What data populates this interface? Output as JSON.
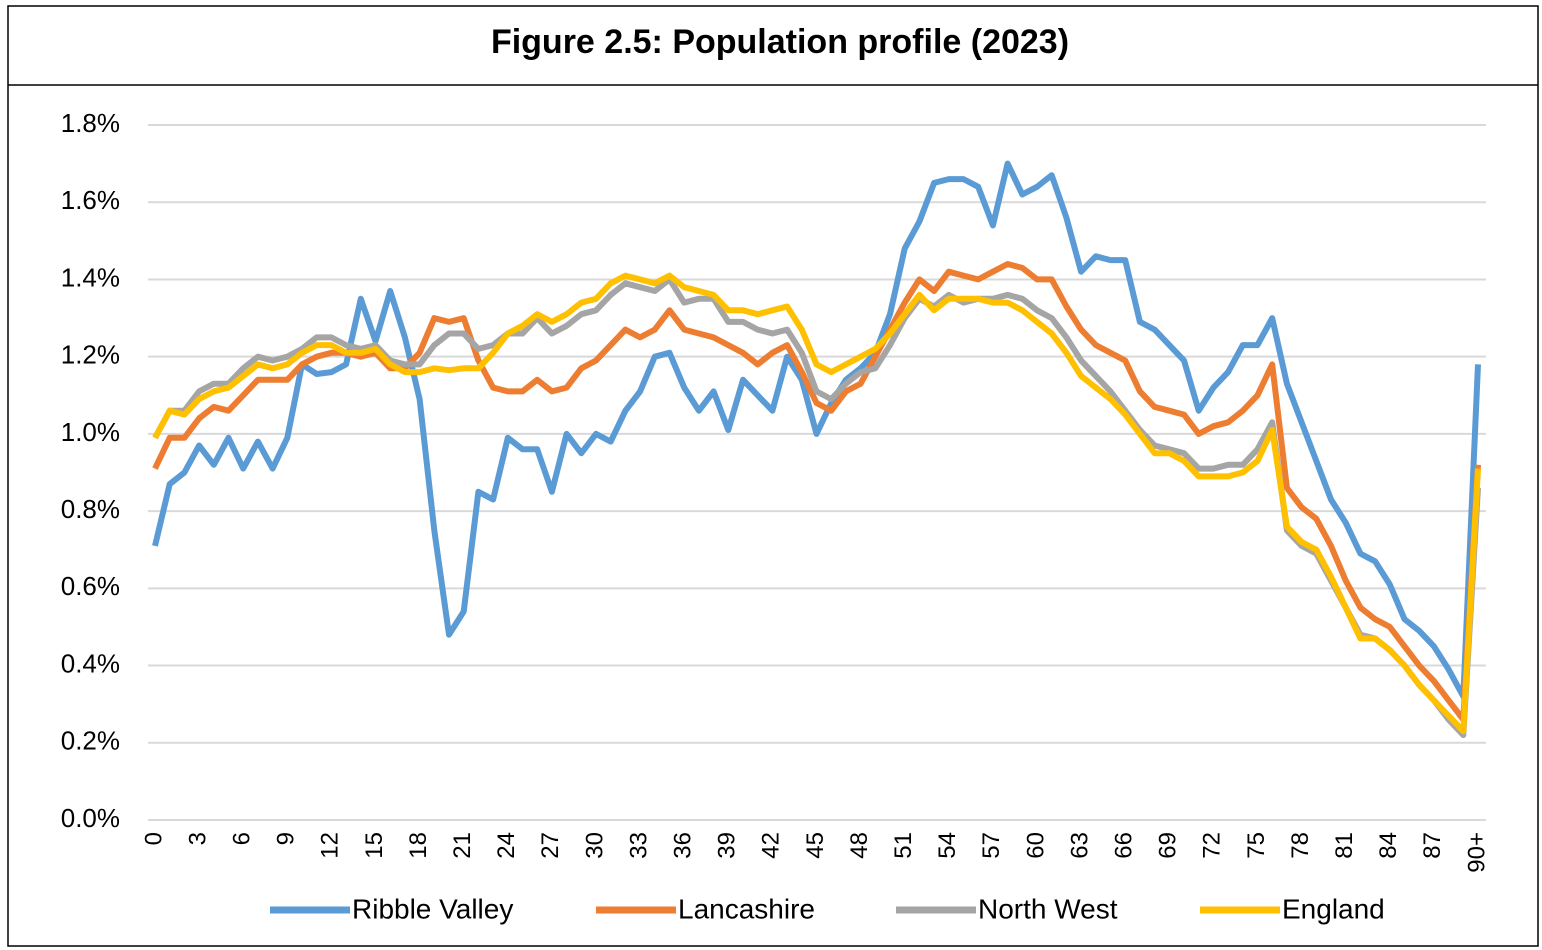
{
  "chart_data": {
    "type": "line",
    "title": "Figure 2.5: Population profile (2023)",
    "categories": [
      "0",
      null,
      null,
      "3",
      null,
      null,
      "6",
      null,
      null,
      "9",
      null,
      null,
      "12",
      null,
      null,
      "15",
      null,
      null,
      "18",
      null,
      null,
      "21",
      null,
      null,
      "24",
      null,
      null,
      "27",
      null,
      null,
      "30",
      null,
      null,
      "33",
      null,
      null,
      "36",
      null,
      null,
      "39",
      null,
      null,
      "42",
      null,
      null,
      "45",
      null,
      null,
      "48",
      null,
      null,
      "51",
      null,
      null,
      "54",
      null,
      null,
      "57",
      null,
      null,
      "60",
      null,
      null,
      "63",
      null,
      null,
      "66",
      null,
      null,
      "69",
      null,
      null,
      "72",
      null,
      null,
      "75",
      null,
      null,
      "78",
      null,
      null,
      "81",
      null,
      null,
      "84",
      null,
      null,
      "87",
      null,
      null,
      "90+"
    ],
    "series": [
      {
        "name": "Ribble Valley",
        "color": "#5b9bd5",
        "values": [
          0.71,
          0.87,
          0.9,
          0.97,
          0.92,
          0.99,
          0.91,
          0.98,
          0.91,
          0.99,
          1.18,
          1.155,
          1.16,
          1.18,
          1.35,
          1.24,
          1.37,
          1.25,
          1.09,
          0.75,
          0.48,
          0.54,
          0.85,
          0.83,
          0.99,
          0.96,
          0.96,
          0.85,
          1.0,
          0.95,
          1.0,
          0.98,
          1.06,
          1.11,
          1.2,
          1.21,
          1.12,
          1.06,
          1.11,
          1.01,
          1.14,
          1.1,
          1.06,
          1.2,
          1.14,
          1.0,
          1.08,
          1.14,
          1.17,
          1.21,
          1.31,
          1.48,
          1.55,
          1.65,
          1.66,
          1.66,
          1.64,
          1.54,
          1.7,
          1.62,
          1.64,
          1.67,
          1.56,
          1.42,
          1.46,
          1.45,
          1.45,
          1.29,
          1.27,
          1.23,
          1.19,
          1.06,
          1.12,
          1.16,
          1.23,
          1.23,
          1.3,
          1.13,
          1.03,
          0.93,
          0.83,
          0.77,
          0.69,
          0.67,
          0.61,
          0.52,
          0.49,
          0.45,
          0.39,
          0.32,
          1.18
        ]
      },
      {
        "name": "Lancashire",
        "color": "#ed7d31",
        "values": [
          0.91,
          0.99,
          0.99,
          1.04,
          1.07,
          1.06,
          1.1,
          1.14,
          1.14,
          1.14,
          1.18,
          1.2,
          1.21,
          1.21,
          1.2,
          1.21,
          1.17,
          1.17,
          1.21,
          1.3,
          1.29,
          1.3,
          1.19,
          1.12,
          1.11,
          1.11,
          1.14,
          1.11,
          1.12,
          1.17,
          1.19,
          1.23,
          1.27,
          1.25,
          1.27,
          1.32,
          1.27,
          1.26,
          1.25,
          1.23,
          1.21,
          1.18,
          1.21,
          1.23,
          1.16,
          1.08,
          1.06,
          1.11,
          1.13,
          1.2,
          1.27,
          1.34,
          1.4,
          1.37,
          1.42,
          1.41,
          1.4,
          1.42,
          1.44,
          1.43,
          1.4,
          1.4,
          1.33,
          1.27,
          1.23,
          1.21,
          1.19,
          1.11,
          1.07,
          1.06,
          1.05,
          1.0,
          1.02,
          1.03,
          1.06,
          1.1,
          1.18,
          0.86,
          0.81,
          0.78,
          0.71,
          0.62,
          0.55,
          0.52,
          0.5,
          0.45,
          0.4,
          0.36,
          0.31,
          0.26,
          0.92
        ]
      },
      {
        "name": "North West",
        "color": "#a5a5a5",
        "values": [
          0.99,
          1.06,
          1.06,
          1.11,
          1.13,
          1.13,
          1.17,
          1.2,
          1.19,
          1.2,
          1.22,
          1.25,
          1.25,
          1.23,
          1.22,
          1.23,
          1.19,
          1.18,
          1.18,
          1.23,
          1.26,
          1.26,
          1.22,
          1.23,
          1.26,
          1.26,
          1.3,
          1.26,
          1.28,
          1.31,
          1.32,
          1.36,
          1.39,
          1.38,
          1.37,
          1.4,
          1.34,
          1.35,
          1.35,
          1.29,
          1.29,
          1.27,
          1.26,
          1.27,
          1.21,
          1.11,
          1.09,
          1.13,
          1.16,
          1.17,
          1.23,
          1.3,
          1.35,
          1.33,
          1.36,
          1.34,
          1.35,
          1.35,
          1.36,
          1.35,
          1.32,
          1.3,
          1.25,
          1.19,
          1.15,
          1.11,
          1.06,
          1.01,
          0.97,
          0.96,
          0.95,
          0.91,
          0.91,
          0.92,
          0.92,
          0.96,
          1.03,
          0.75,
          0.71,
          0.69,
          0.62,
          0.55,
          0.48,
          0.47,
          0.44,
          0.4,
          0.35,
          0.31,
          0.26,
          0.22,
          0.86
        ]
      },
      {
        "name": "England",
        "color": "#ffc000",
        "values": [
          0.99,
          1.06,
          1.05,
          1.09,
          1.11,
          1.12,
          1.15,
          1.18,
          1.17,
          1.18,
          1.21,
          1.23,
          1.23,
          1.21,
          1.21,
          1.22,
          1.18,
          1.16,
          1.16,
          1.17,
          1.165,
          1.17,
          1.17,
          1.21,
          1.26,
          1.28,
          1.31,
          1.29,
          1.31,
          1.34,
          1.35,
          1.39,
          1.41,
          1.4,
          1.39,
          1.41,
          1.38,
          1.37,
          1.36,
          1.32,
          1.32,
          1.31,
          1.32,
          1.33,
          1.27,
          1.18,
          1.16,
          1.18,
          1.2,
          1.22,
          1.26,
          1.31,
          1.36,
          1.32,
          1.35,
          1.35,
          1.35,
          1.34,
          1.34,
          1.32,
          1.29,
          1.26,
          1.21,
          1.15,
          1.12,
          1.09,
          1.05,
          1.0,
          0.95,
          0.95,
          0.93,
          0.89,
          0.89,
          0.89,
          0.9,
          0.93,
          1.01,
          0.76,
          0.72,
          0.7,
          0.63,
          0.55,
          0.47,
          0.47,
          0.44,
          0.4,
          0.35,
          0.31,
          0.27,
          0.23,
          0.91
        ]
      }
    ],
    "ylim": [
      0,
      1.8
    ],
    "yticks": [
      {
        "value": 0,
        "label": "0.0%"
      },
      {
        "value": 0.2,
        "label": "0.2%"
      },
      {
        "value": 0.4,
        "label": "0.4%"
      },
      {
        "value": 0.6,
        "label": "0.6%"
      },
      {
        "value": 0.8,
        "label": "0.8%"
      },
      {
        "value": 1.0,
        "label": "1.0%"
      },
      {
        "value": 1.2,
        "label": "1.2%"
      },
      {
        "value": 1.4,
        "label": "1.4%"
      },
      {
        "value": 1.6,
        "label": "1.6%"
      },
      {
        "value": 1.8,
        "label": "1.8%"
      }
    ],
    "grid": true,
    "legend": "bottom"
  }
}
